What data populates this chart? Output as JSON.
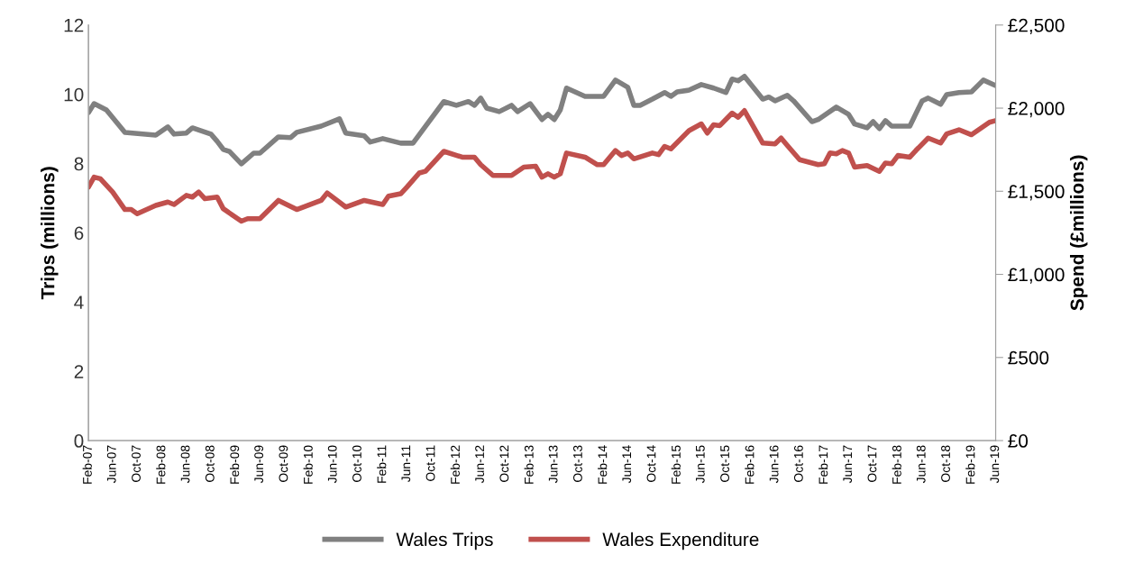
{
  "chart_data": {
    "type": "line",
    "ylabel": "Trips (millions)",
    "y2label": "Spend (£millions)",
    "xlim": [
      "2007-02",
      "2019-06"
    ],
    "xticks": [
      {
        "value": "2007-02",
        "label": "Feb-07"
      },
      {
        "value": "2007-06",
        "label": "Jun-07"
      },
      {
        "value": "2007-10",
        "label": "Oct-07"
      },
      {
        "value": "2008-02",
        "label": "Feb-08"
      },
      {
        "value": "2008-06",
        "label": "Jun-08"
      },
      {
        "value": "2008-10",
        "label": "Oct-08"
      },
      {
        "value": "2009-02",
        "label": "Feb-09"
      },
      {
        "value": "2009-06",
        "label": "Jun-09"
      },
      {
        "value": "2009-10",
        "label": "Oct-09"
      },
      {
        "value": "2010-02",
        "label": "Feb-10"
      },
      {
        "value": "2010-06",
        "label": "Jun-10"
      },
      {
        "value": "2010-10",
        "label": "Oct-10"
      },
      {
        "value": "2011-02",
        "label": "Feb-11"
      },
      {
        "value": "2011-06",
        "label": "Jun-11"
      },
      {
        "value": "2011-10",
        "label": "Oct-11"
      },
      {
        "value": "2012-02",
        "label": "Feb-12"
      },
      {
        "value": "2012-06",
        "label": "Jun-12"
      },
      {
        "value": "2012-10",
        "label": "Oct-12"
      },
      {
        "value": "2013-02",
        "label": "Feb-13"
      },
      {
        "value": "2013-06",
        "label": "Jun-13"
      },
      {
        "value": "2013-10",
        "label": "Oct-13"
      },
      {
        "value": "2014-02",
        "label": "Feb-14"
      },
      {
        "value": "2014-06",
        "label": "Jun-14"
      },
      {
        "value": "2014-10",
        "label": "Oct-14"
      },
      {
        "value": "2015-02",
        "label": "Feb-15"
      },
      {
        "value": "2015-06",
        "label": "Jun-15"
      },
      {
        "value": "2015-10",
        "label": "Oct-15"
      },
      {
        "value": "2016-02",
        "label": "Feb-16"
      },
      {
        "value": "2016-06",
        "label": "Jun-16"
      },
      {
        "value": "2016-10",
        "label": "Oct-16"
      },
      {
        "value": "2017-02",
        "label": "Feb-17"
      },
      {
        "value": "2017-06",
        "label": "Jun-17"
      },
      {
        "value": "2017-10",
        "label": "Oct-17"
      },
      {
        "value": "2018-02",
        "label": "Feb-18"
      },
      {
        "value": "2018-06",
        "label": "Jun-18"
      },
      {
        "value": "2018-10",
        "label": "Oct-18"
      },
      {
        "value": "2019-02",
        "label": "Feb-19"
      },
      {
        "value": "2019-06",
        "label": "Jun-19"
      }
    ],
    "ylim": [
      0,
      12
    ],
    "yticks": [
      0,
      2,
      4,
      6,
      8,
      10,
      12
    ],
    "y2lim": [
      0,
      2500
    ],
    "y2ticks": [
      {
        "value": 0,
        "label": "£0"
      },
      {
        "value": 500,
        "label": "£500"
      },
      {
        "value": 1000,
        "label": "£1,000"
      },
      {
        "value": 1500,
        "label": "£1,500"
      },
      {
        "value": 2000,
        "label": "£2,000"
      },
      {
        "value": 2500,
        "label": "£2,500"
      }
    ],
    "grid": false,
    "legend": "bottom",
    "marker": "none",
    "line_style": "solid",
    "series": [
      {
        "name": "Wales Trips",
        "color": "#808080",
        "x": [
          "2007-02",
          "2007-03",
          "2007-05",
          "2007-08",
          "2008-01",
          "2008-03",
          "2008-04",
          "2008-06",
          "2008-07",
          "2008-10",
          "2008-11",
          "2008-12",
          "2009-01",
          "2009-03",
          "2009-05",
          "2009-06",
          "2009-09",
          "2009-11",
          "2009-12",
          "2010-04",
          "2010-07",
          "2010-08",
          "2010-11",
          "2010-12",
          "2011-02",
          "2011-05",
          "2011-07",
          "2011-12",
          "2012-02",
          "2012-04",
          "2012-05",
          "2012-06",
          "2012-07",
          "2012-09",
          "2012-11",
          "2012-12",
          "2013-02",
          "2013-04",
          "2013-05",
          "2013-06",
          "2013-07",
          "2013-08",
          "2013-11",
          "2014-02",
          "2014-04",
          "2014-06",
          "2014-07",
          "2014-08",
          "2014-10",
          "2014-12",
          "2015-01",
          "2015-02",
          "2015-04",
          "2015-06",
          "2015-08",
          "2015-10",
          "2015-11",
          "2015-12",
          "2016-01",
          "2016-04",
          "2016-05",
          "2016-06",
          "2016-08",
          "2016-09",
          "2016-12",
          "2017-01",
          "2017-04",
          "2017-06",
          "2017-07",
          "2017-09",
          "2017-10",
          "2017-11",
          "2017-12",
          "2018-01",
          "2018-04",
          "2018-06",
          "2018-07",
          "2018-09",
          "2018-10",
          "2018-12",
          "2019-02",
          "2019-04",
          "2019-06"
        ],
        "values": [
          9.47,
          9.73,
          9.55,
          8.9,
          8.82,
          9.06,
          8.85,
          8.88,
          9.03,
          8.85,
          8.64,
          8.41,
          8.35,
          7.99,
          8.3,
          8.3,
          8.77,
          8.75,
          8.9,
          9.08,
          9.29,
          8.88,
          8.8,
          8.62,
          8.72,
          8.59,
          8.59,
          9.79,
          9.68,
          9.79,
          9.68,
          9.89,
          9.6,
          9.5,
          9.68,
          9.5,
          9.73,
          9.27,
          9.42,
          9.27,
          9.55,
          10.18,
          9.94,
          9.94,
          10.41,
          10.2,
          9.68,
          9.68,
          9.86,
          10.05,
          9.94,
          10.07,
          10.12,
          10.28,
          10.18,
          10.05,
          10.44,
          10.39,
          10.52,
          9.86,
          9.92,
          9.81,
          9.97,
          9.81,
          9.21,
          9.27,
          9.63,
          9.42,
          9.14,
          9.03,
          9.21,
          9.01,
          9.24,
          9.08,
          9.08,
          9.81,
          9.89,
          9.71,
          9.99,
          10.05,
          10.07,
          10.41,
          10.25
        ]
      },
      {
        "name": "Wales Expenditure",
        "color": "#c0504d",
        "axis": "y2",
        "x": [
          "2007-02",
          "2007-03",
          "2007-04",
          "2007-06",
          "2007-08",
          "2007-09",
          "2007-10",
          "2008-01",
          "2008-03",
          "2008-04",
          "2008-06",
          "2008-07",
          "2008-08",
          "2008-09",
          "2008-11",
          "2008-12",
          "2009-03",
          "2009-04",
          "2009-06",
          "2009-09",
          "2009-12",
          "2010-04",
          "2010-05",
          "2010-08",
          "2010-11",
          "2011-02",
          "2011-03",
          "2011-05",
          "2011-06",
          "2011-08",
          "2011-09",
          "2011-12",
          "2012-03",
          "2012-05",
          "2012-06",
          "2012-08",
          "2012-11",
          "2013-01",
          "2013-03",
          "2013-04",
          "2013-05",
          "2013-06",
          "2013-07",
          "2013-08",
          "2013-11",
          "2014-01",
          "2014-02",
          "2014-04",
          "2014-05",
          "2014-06",
          "2014-07",
          "2014-10",
          "2014-11",
          "2014-12",
          "2015-01",
          "2015-04",
          "2015-06",
          "2015-07",
          "2015-08",
          "2015-09",
          "2015-11",
          "2015-12",
          "2016-01",
          "2016-04",
          "2016-06",
          "2016-07",
          "2016-08",
          "2016-10",
          "2017-01",
          "2017-02",
          "2017-03",
          "2017-04",
          "2017-05",
          "2017-06",
          "2017-07",
          "2017-09",
          "2017-11",
          "2017-12",
          "2018-01",
          "2018-02",
          "2018-04",
          "2018-05",
          "2018-07",
          "2018-09",
          "2018-10",
          "2018-12",
          "2019-02",
          "2019-05",
          "2019-06"
        ],
        "values": [
          1525,
          1585,
          1575,
          1495,
          1390,
          1390,
          1365,
          1415,
          1435,
          1420,
          1475,
          1465,
          1495,
          1455,
          1465,
          1395,
          1320,
          1335,
          1335,
          1445,
          1390,
          1445,
          1490,
          1405,
          1445,
          1420,
          1470,
          1485,
          1525,
          1610,
          1620,
          1740,
          1705,
          1705,
          1660,
          1595,
          1595,
          1645,
          1650,
          1585,
          1605,
          1585,
          1605,
          1730,
          1705,
          1660,
          1660,
          1745,
          1715,
          1730,
          1695,
          1730,
          1720,
          1770,
          1755,
          1865,
          1905,
          1850,
          1900,
          1895,
          1970,
          1945,
          1985,
          1790,
          1785,
          1820,
          1775,
          1690,
          1660,
          1665,
          1730,
          1725,
          1745,
          1730,
          1645,
          1655,
          1620,
          1670,
          1665,
          1715,
          1705,
          1745,
          1820,
          1790,
          1845,
          1870,
          1840,
          1915,
          1925
        ]
      }
    ]
  }
}
